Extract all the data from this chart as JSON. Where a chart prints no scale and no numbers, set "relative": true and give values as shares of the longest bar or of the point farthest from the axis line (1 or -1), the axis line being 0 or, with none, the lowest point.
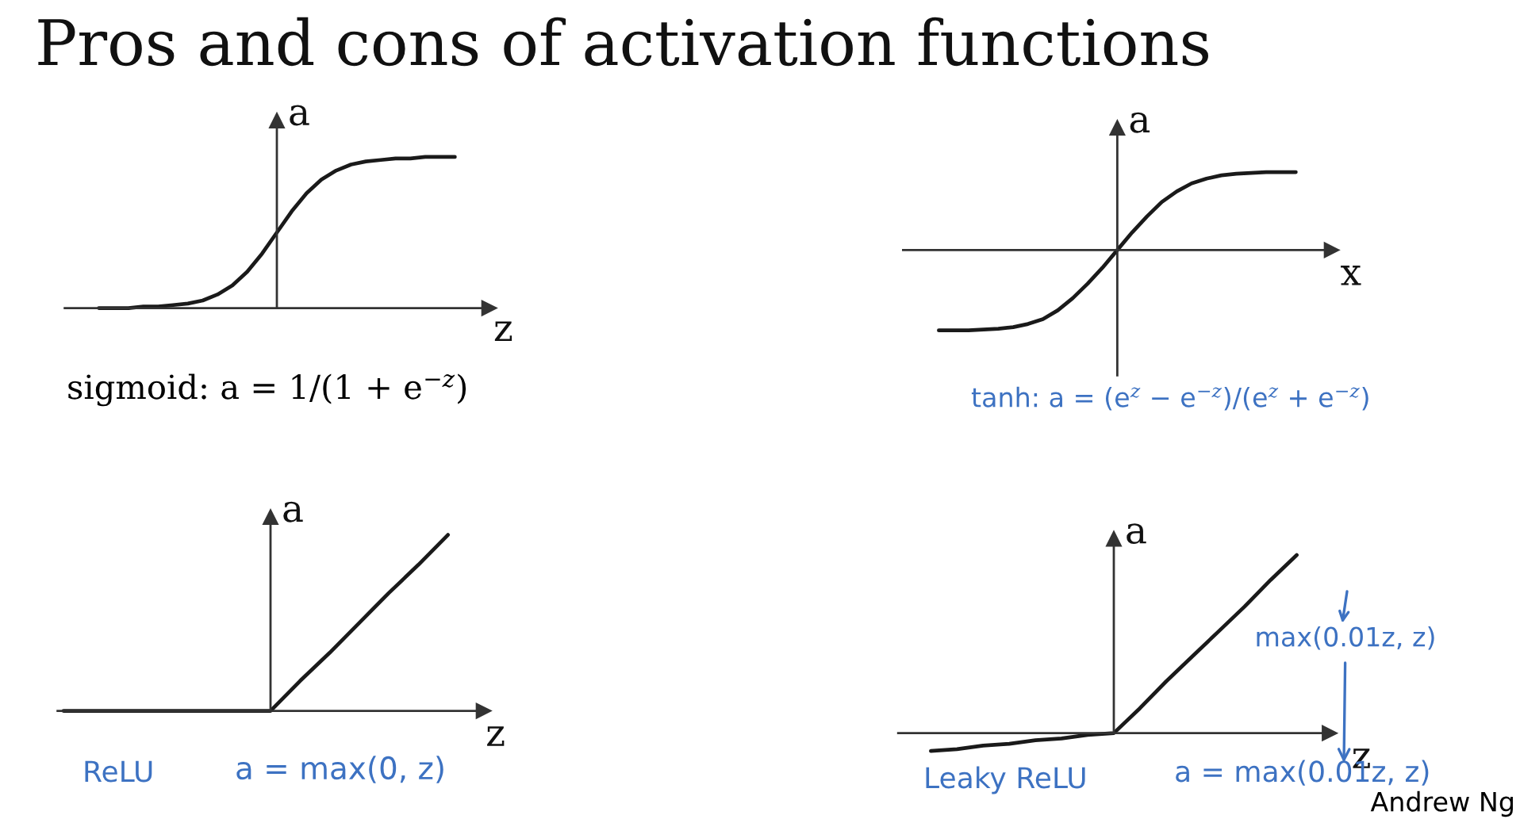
{
  "chart_data": [
    {
      "type": "line",
      "title": "Pros and cons of activation functions",
      "xlabel": "z",
      "ylabel": "a",
      "relative": true,
      "tick_labels": false,
      "categories": [
        null,
        null,
        null,
        null,
        null,
        null,
        null,
        null,
        null,
        null,
        null,
        null,
        null,
        null,
        null,
        null,
        null,
        null,
        null,
        null,
        null,
        null,
        null,
        null,
        null
      ],
      "values": [
        0,
        0,
        0,
        0.01,
        0.01,
        0.02,
        0.03,
        0.05,
        0.09,
        0.15,
        0.24,
        0.36,
        0.5,
        0.64,
        0.76,
        0.85,
        0.91,
        0.95,
        0.97,
        0.98,
        0.99,
        0.99,
        1.0,
        1.0,
        1.0
      ],
      "color": "#1a1a1a",
      "annotations": [
        "sigmoid: a = 1/(1 + e$^{−z}$)"
      ]
    },
    {
      "type": "line",
      "xlabel": "x",
      "ylabel": "a",
      "relative": true,
      "tick_labels": false,
      "categories": [
        null,
        null,
        null,
        null,
        null,
        null,
        null,
        null,
        null,
        null,
        null,
        null,
        null,
        null,
        null,
        null,
        null,
        null,
        null,
        null,
        null,
        null,
        null,
        null,
        null
      ],
      "values": [
        -1.0,
        -1.0,
        -1.0,
        -0.99,
        -0.98,
        -0.96,
        -0.92,
        -0.86,
        -0.75,
        -0.6,
        -0.42,
        -0.22,
        0,
        0.22,
        0.42,
        0.6,
        0.73,
        0.83,
        0.89,
        0.93,
        0.95,
        0.96,
        0.97,
        0.97,
        0.97
      ],
      "color": "#1a1a1a",
      "annotations": [
        "tanh: a = (e$^{z}$ − e$^{−z}$)/(e$^{z}$ + e$^{−z}$)"
      ]
    },
    {
      "type": "line",
      "xlabel": "z",
      "ylabel": "a",
      "relative": true,
      "tick_labels": false,
      "categories": [
        null,
        null,
        null,
        null,
        null,
        null,
        null,
        null,
        null,
        null,
        null,
        null,
        null,
        null
      ],
      "values": [
        0,
        0,
        0,
        0,
        0,
        0,
        0,
        0,
        0.17,
        0.33,
        0.5,
        0.67,
        0.83,
        1.0
      ],
      "color": "#1a1a1a",
      "annotations": [
        "ReLU",
        "a = max(0, z)"
      ]
    },
    {
      "type": "line",
      "xlabel": "z",
      "ylabel": "a",
      "relative": true,
      "tick_labels": false,
      "categories": [
        null,
        null,
        null,
        null,
        null,
        null,
        null,
        null,
        null,
        null,
        null,
        null,
        null,
        null,
        null
      ],
      "values": [
        -0.1,
        -0.09,
        -0.07,
        -0.06,
        -0.04,
        -0.03,
        -0.01,
        0,
        0.14,
        0.29,
        0.43,
        0.57,
        0.71,
        0.86,
        1.0
      ],
      "color": "#1a1a1a",
      "annotations": [
        "Leaky ReLU",
        "a = max(0.01z, z)",
        "max(0.01z, z)",
        "Andrew Ng"
      ]
    }
  ]
}
